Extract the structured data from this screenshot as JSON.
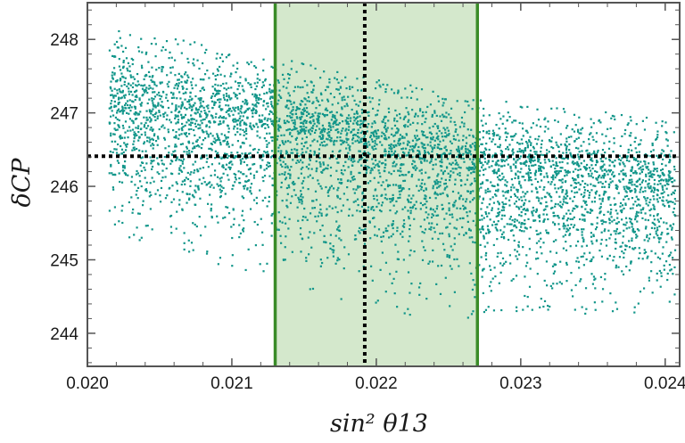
{
  "chart_data": {
    "type": "scatter",
    "title": "",
    "xlabel": "sin² θ13",
    "ylabel": "δCP",
    "xlim": [
      0.02,
      0.0241
    ],
    "ylim": [
      243.55,
      248.5
    ],
    "x_ticks": [
      "0.020",
      "0.021",
      "0.022",
      "0.023",
      "0.024"
    ],
    "x_tick_values": [
      0.02,
      0.021,
      0.022,
      0.023,
      0.024
    ],
    "y_ticks": [
      "244",
      "245",
      "246",
      "247",
      "248"
    ],
    "y_tick_values": [
      244,
      245,
      246,
      247,
      248
    ],
    "point_color": "#12968a",
    "band_fill_color": "#d4e8cc",
    "band_edge_color": "#3a8c28",
    "reference_line_color": "#000000",
    "shaded_band": {
      "x_min": 0.0213,
      "x_max": 0.0227
    },
    "reference_lines": {
      "x": 0.02192,
      "y": 246.41
    },
    "point_cloud": {
      "x_range": [
        0.02015,
        0.02407
      ],
      "mean_trend": [
        [
          0.0202,
          247.0
        ],
        [
          0.0213,
          246.75
        ],
        [
          0.0221,
          246.45
        ],
        [
          0.0227,
          246.2
        ],
        [
          0.0241,
          245.85
        ]
      ],
      "upper_edge": [
        [
          0.0202,
          248.2
        ],
        [
          0.0213,
          247.75
        ],
        [
          0.0227,
          247.2
        ],
        [
          0.0241,
          246.9
        ]
      ],
      "lower_edge": [
        [
          0.0202,
          245.3
        ],
        [
          0.0213,
          244.7
        ],
        [
          0.0222,
          244.2
        ],
        [
          0.0227,
          244.2
        ],
        [
          0.0241,
          244.3
        ]
      ],
      "approx_count": 5000
    },
    "grid": false,
    "legend": "none"
  }
}
